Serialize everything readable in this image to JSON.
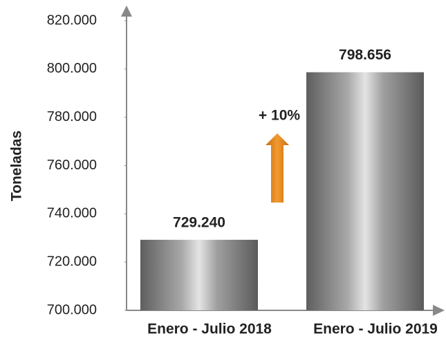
{
  "chart_data": {
    "type": "bar",
    "y_label": "Toneladas",
    "categories": [
      "Enero - Julio 2018",
      "Enero - Julio 2019"
    ],
    "values": [
      729240,
      798656
    ],
    "value_labels": [
      "729.240",
      "798.656"
    ],
    "annotation": "+ 10%",
    "ylim": [
      700000,
      820000
    ],
    "yticks": [
      {
        "value": 700000,
        "label": "700.000"
      },
      {
        "value": 720000,
        "label": "720.000"
      },
      {
        "value": 740000,
        "label": "740.000"
      },
      {
        "value": 760000,
        "label": "760.000"
      },
      {
        "value": 780000,
        "label": "780.000"
      },
      {
        "value": 800000,
        "label": "800.000"
      },
      {
        "value": 820000,
        "label": "820.000"
      }
    ]
  }
}
